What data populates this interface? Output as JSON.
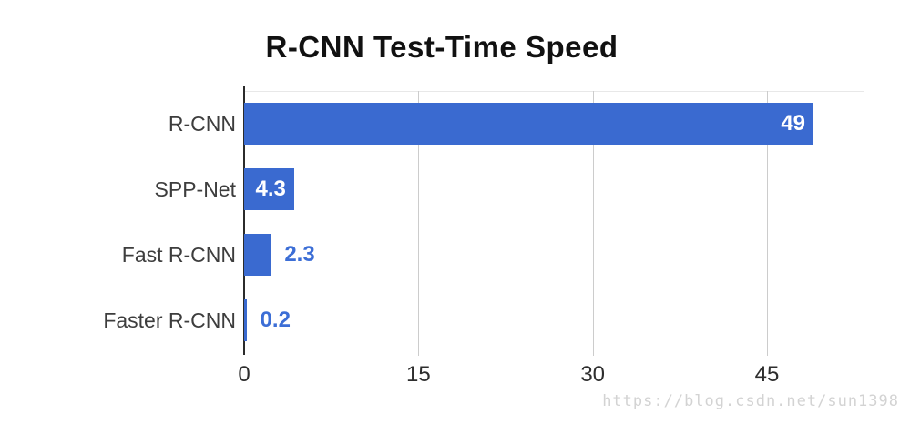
{
  "title": "R-CNN Test-Time Speed",
  "watermark": "https://blog.csdn.net/sun1398",
  "chart_data": {
    "type": "bar",
    "orientation": "horizontal",
    "title": "R-CNN Test-Time Speed",
    "xlabel": "",
    "ylabel": "",
    "categories": [
      "R-CNN",
      "SPP-Net",
      "Fast R-CNN",
      "Faster R-CNN"
    ],
    "values": [
      49,
      4.3,
      2.3,
      0.2
    ],
    "value_labels": [
      "49",
      "4.3",
      "2.3",
      "0.2"
    ],
    "x_ticks": [
      0,
      15,
      30,
      45
    ],
    "xlim": [
      0,
      53.5
    ],
    "grid": true,
    "legend": "none"
  },
  "colors": {
    "bar": "#3a6ad0",
    "value_inside": "#ffffff",
    "value_outside": "#3c6ed6",
    "axis": "#2b2b2b",
    "grid": "#cccccc",
    "background": "#ffffff"
  }
}
